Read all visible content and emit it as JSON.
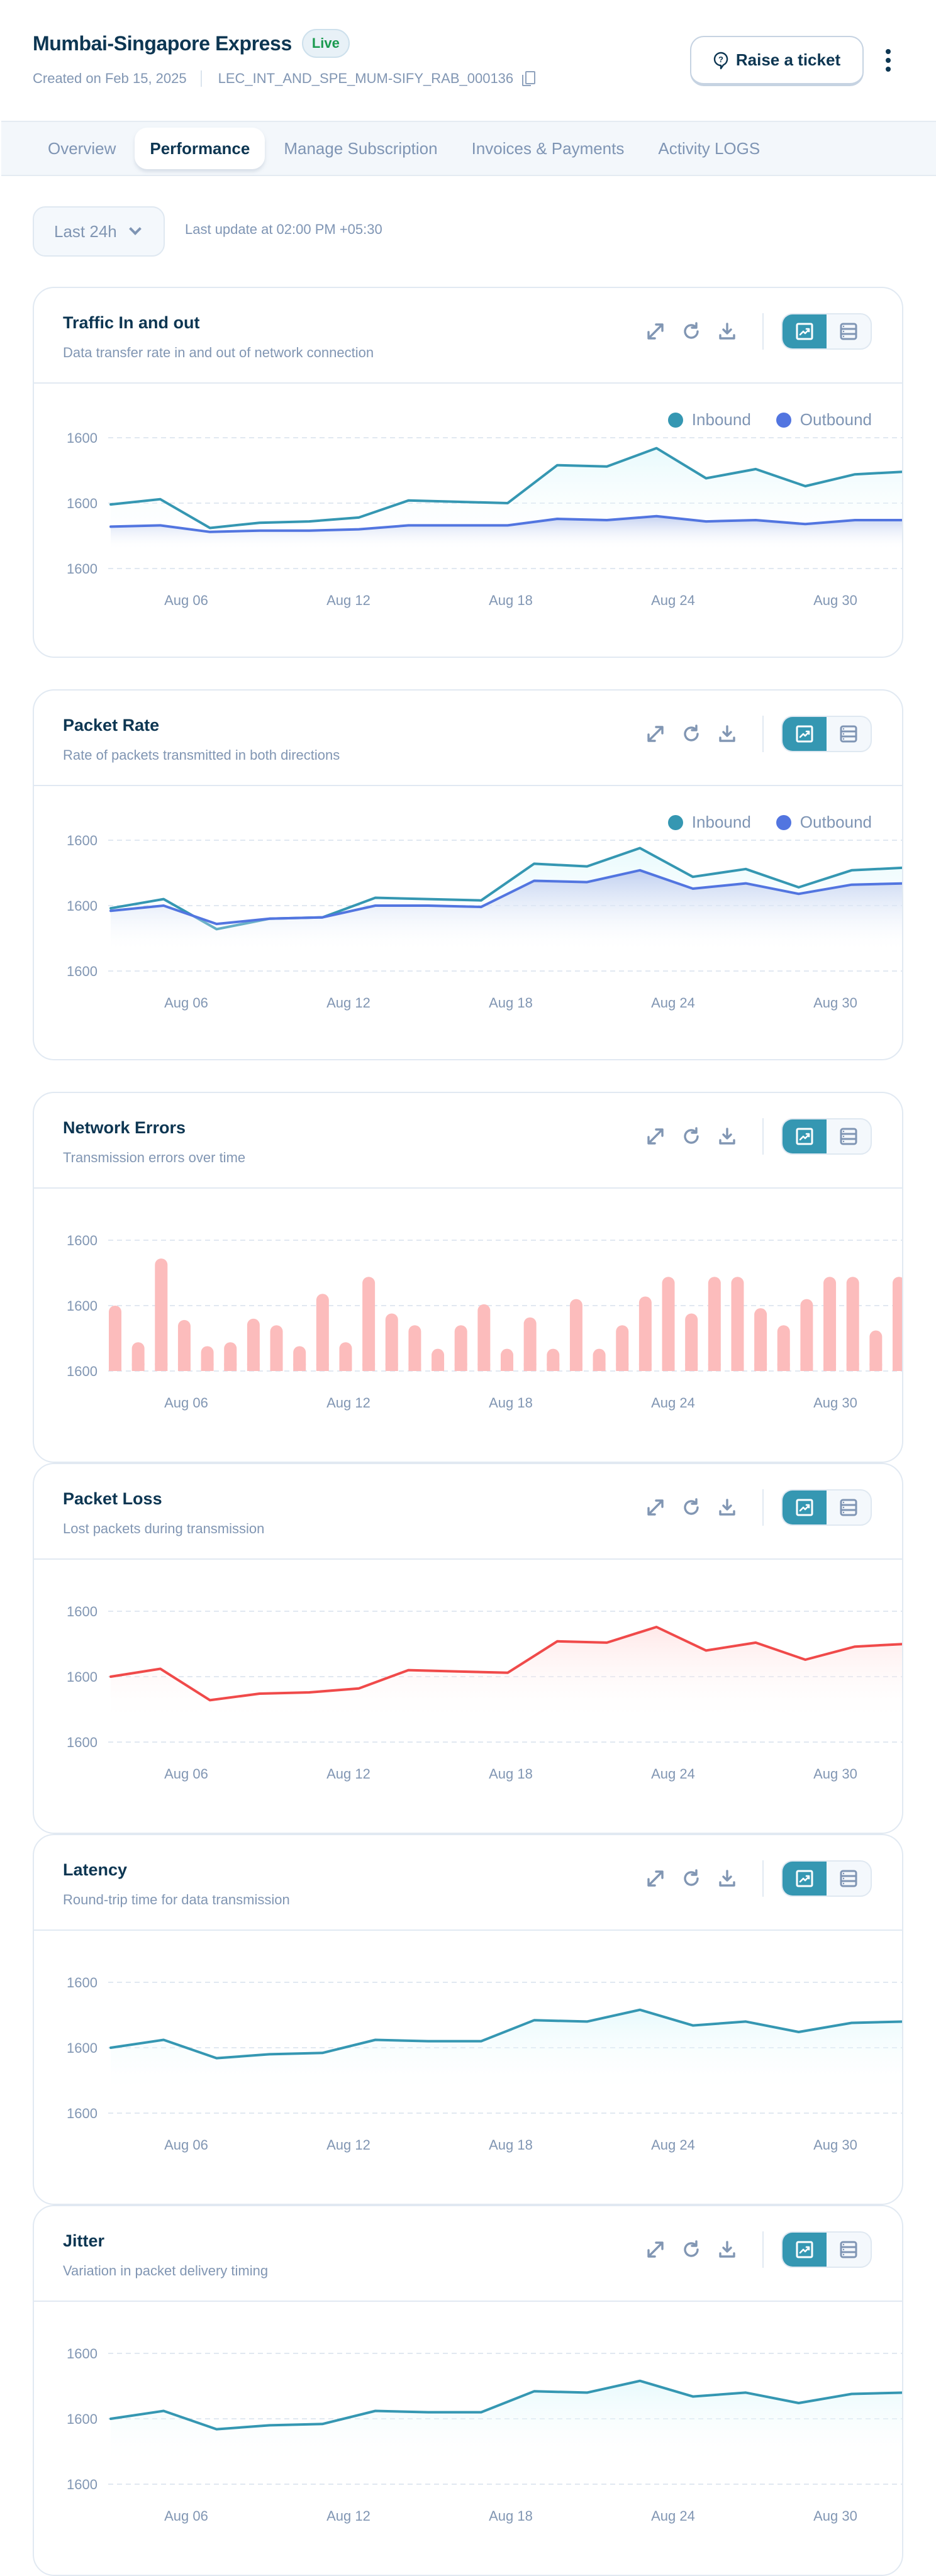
{
  "header": {
    "title": "Mumbai-Singapore Express",
    "status_badge": "Live",
    "created": "Created on Feb 15, 2025",
    "circuit_id": "LEC_INT_AND_SPE_MUM-SIFY_RAB_000136",
    "raise_ticket_label": "Raise a ticket"
  },
  "tabs": [
    {
      "label": "Overview",
      "active": false
    },
    {
      "label": "Performance",
      "active": true
    },
    {
      "label": "Manage Subscription",
      "active": false
    },
    {
      "label": "Invoices & Payments",
      "active": false
    },
    {
      "label": "Activity LOGS",
      "active": false
    }
  ],
  "filter": {
    "range_selected": "Last 24h",
    "last_update": "Last update at 02:00 PM +05:30"
  },
  "colors": {
    "inbound": "#3597b2",
    "outbound": "#5275e0",
    "errors": "#fcbcbc",
    "loss": "#f04a4a",
    "accent": "#3597b2"
  },
  "chart_data": [
    {
      "id": "traffic",
      "type": "area",
      "title": "Traffic In and out",
      "subtitle": "Data transfer rate in and out of network connection",
      "yticks": [
        "1600",
        "1600",
        "1600"
      ],
      "xticks": [
        "Aug 06",
        "Aug 12",
        "Aug 18",
        "Aug 24",
        "Aug 30"
      ],
      "ylim": [
        0,
        100
      ],
      "legend": "top-right",
      "series": [
        {
          "name": "Inbound",
          "color": "inbound",
          "values": [
            49,
            53,
            31,
            35,
            36,
            39,
            52,
            51,
            50,
            79,
            78,
            92,
            69,
            76,
            63,
            72,
            74
          ]
        },
        {
          "name": "Outbound",
          "color": "outbound",
          "values": [
            32,
            33,
            28,
            29,
            29,
            30,
            33,
            33,
            33,
            38,
            37,
            40,
            36,
            37,
            34,
            37,
            37
          ]
        }
      ]
    },
    {
      "id": "packet-rate",
      "type": "area",
      "title": "Packet Rate",
      "subtitle": "Rate of packets transmitted in both directions",
      "yticks": [
        "1600",
        "1600",
        "1600"
      ],
      "xticks": [
        "Aug 06",
        "Aug 12",
        "Aug 18",
        "Aug 24",
        "Aug 30"
      ],
      "ylim": [
        0,
        100
      ],
      "legend": "top-right",
      "series": [
        {
          "name": "Inbound",
          "color": "inbound",
          "values": [
            48,
            55,
            32,
            40,
            41,
            56,
            55,
            54,
            82,
            80,
            94,
            72,
            78,
            64,
            77,
            79
          ]
        },
        {
          "name": "Outbound",
          "color": "outbound",
          "values": [
            46,
            50,
            36,
            40,
            41,
            50,
            50,
            49,
            69,
            68,
            77,
            63,
            67,
            59,
            66,
            67
          ]
        }
      ]
    },
    {
      "id": "network-errors",
      "type": "bar",
      "title": "Network Errors",
      "subtitle": "Transmission errors over time",
      "yticks": [
        "1600",
        "1600",
        "1600"
      ],
      "xticks": [
        "Aug 06",
        "Aug 12",
        "Aug 18",
        "Aug 24",
        "Aug 30"
      ],
      "ylim": [
        0,
        100
      ],
      "values": [
        50,
        22,
        86,
        39,
        19,
        22,
        40,
        35,
        19,
        59,
        22,
        72,
        44,
        35,
        17,
        35,
        51,
        17,
        41,
        17,
        55,
        17,
        35,
        57,
        72,
        44,
        72,
        72,
        48,
        35,
        55,
        72,
        72,
        31,
        72
      ]
    },
    {
      "id": "packet-loss",
      "type": "area",
      "title": "Packet Loss",
      "subtitle": "Lost packets during transmission",
      "yticks": [
        "1600",
        "1600",
        "1600"
      ],
      "xticks": [
        "Aug 06",
        "Aug 12",
        "Aug 18",
        "Aug 24",
        "Aug 30"
      ],
      "ylim": [
        0,
        100
      ],
      "series": [
        {
          "name": "Packet Loss",
          "color": "loss",
          "values": [
            50,
            56,
            32,
            37,
            38,
            41,
            55,
            54,
            53,
            77,
            76,
            88,
            70,
            76,
            63,
            73,
            75
          ]
        }
      ]
    },
    {
      "id": "latency",
      "type": "area",
      "title": "Latency",
      "subtitle": "Round-trip time for data transmission",
      "yticks": [
        "1600",
        "1600",
        "1600"
      ],
      "xticks": [
        "Aug 06",
        "Aug 12",
        "Aug 18",
        "Aug 24",
        "Aug 30"
      ],
      "ylim": [
        0,
        100
      ],
      "series": [
        {
          "name": "Latency",
          "color": "inbound",
          "values": [
            50,
            56,
            42,
            45,
            46,
            56,
            55,
            55,
            71,
            70,
            79,
            67,
            70,
            62,
            69,
            70
          ]
        }
      ]
    },
    {
      "id": "jitter",
      "type": "area",
      "title": "Jitter",
      "subtitle": "Variation in packet delivery timing",
      "yticks": [
        "1600",
        "1600",
        "1600"
      ],
      "xticks": [
        "Aug 06",
        "Aug 12",
        "Aug 18",
        "Aug 24",
        "Aug 30"
      ],
      "ylim": [
        0,
        100
      ],
      "series": [
        {
          "name": "Jitter",
          "color": "inbound",
          "values": [
            50,
            56,
            42,
            45,
            46,
            56,
            55,
            55,
            71,
            70,
            79,
            67,
            70,
            62,
            69,
            70
          ]
        }
      ]
    }
  ]
}
